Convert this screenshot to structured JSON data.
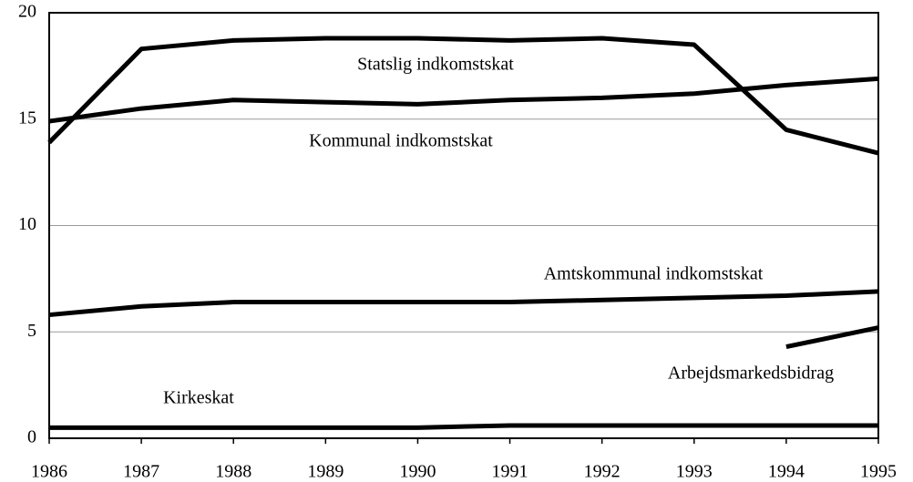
{
  "chart_data": {
    "type": "line",
    "x": [
      1986,
      1987,
      1988,
      1989,
      1990,
      1991,
      1992,
      1993,
      1994,
      1995
    ],
    "series": [
      {
        "name": "Statslig indkomstskat",
        "color": "#000000",
        "values": [
          13.9,
          18.3,
          18.7,
          18.8,
          18.8,
          18.7,
          18.8,
          18.5,
          14.5,
          13.4
        ]
      },
      {
        "name": "Kommunal indkomstskat",
        "color": "#000000",
        "values": [
          14.9,
          15.5,
          15.9,
          15.8,
          15.7,
          15.9,
          16.0,
          16.2,
          16.6,
          16.9
        ]
      },
      {
        "name": "Amtskommunal indkomstskat",
        "color": "#000000",
        "values": [
          5.8,
          6.2,
          6.4,
          6.4,
          6.4,
          6.4,
          6.5,
          6.6,
          6.7,
          6.9
        ]
      },
      {
        "name": "Arbejdsmarkedsbidrag",
        "color": "#000000",
        "values": [
          null,
          null,
          null,
          null,
          null,
          null,
          null,
          null,
          4.3,
          5.2
        ]
      },
      {
        "name": "Kirkeskat",
        "color": "#000000",
        "values": [
          0.5,
          0.5,
          0.5,
          0.5,
          0.5,
          0.6,
          0.6,
          0.6,
          0.6,
          0.6
        ]
      }
    ],
    "xlim": [
      1986,
      1995
    ],
    "xticks": [
      1986,
      1987,
      1988,
      1989,
      1990,
      1991,
      1992,
      1993,
      1994,
      1995
    ],
    "ylim": [
      0,
      20
    ],
    "yticks": [
      0,
      5,
      10,
      15,
      20
    ],
    "grid": true
  }
}
